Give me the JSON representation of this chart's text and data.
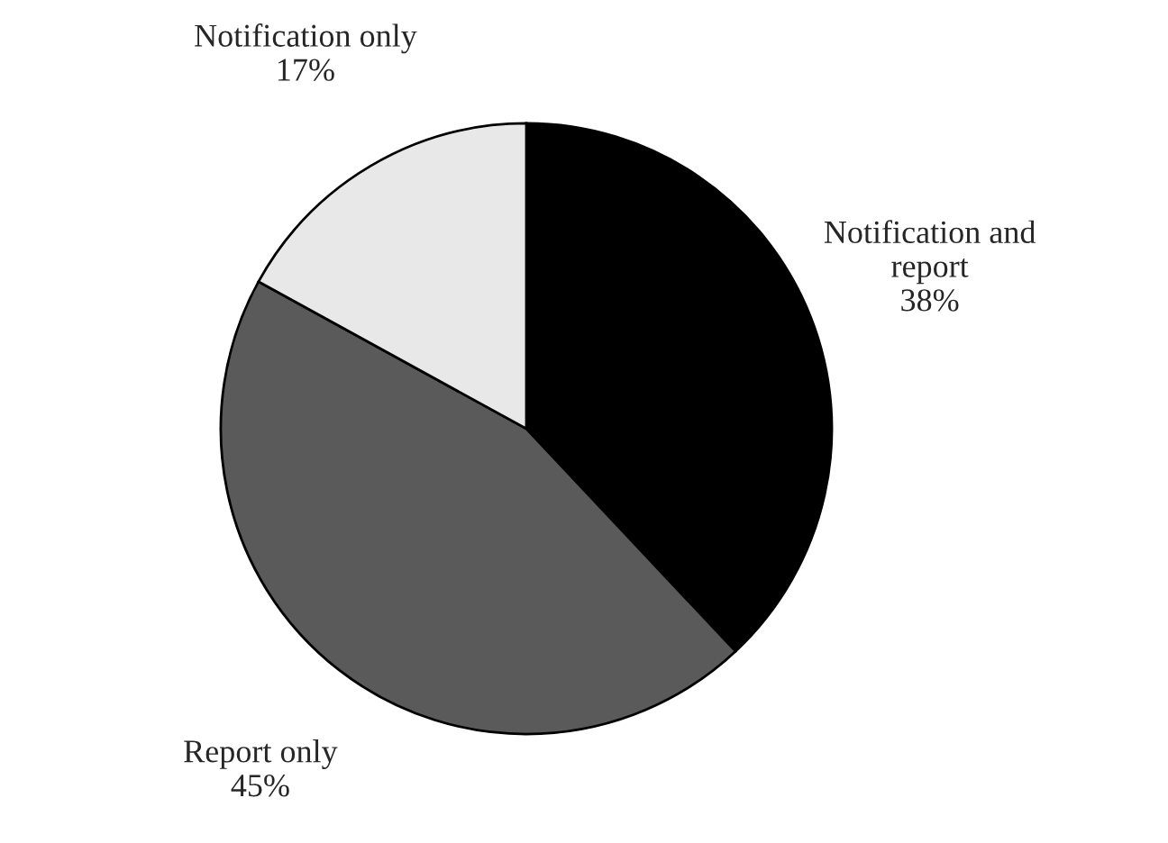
{
  "chart_data": {
    "type": "pie",
    "categories": [
      "Notification and\nreport",
      "Report only",
      "Notification only"
    ],
    "values": [
      38,
      45,
      17
    ],
    "value_labels": [
      "38%",
      "45%",
      "17%"
    ],
    "colors": [
      "#000000",
      "#5a5a5a",
      "#e8e8e8"
    ]
  }
}
